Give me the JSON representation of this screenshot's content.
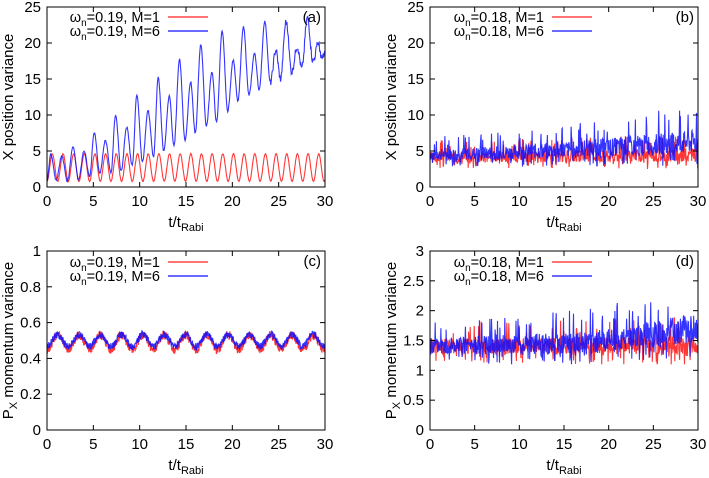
{
  "colors": {
    "m1": "#ff2020",
    "m6": "#1010ff"
  },
  "chart_data": [
    {
      "id": "a",
      "type": "line",
      "panel_label": "(a)",
      "ylabel": "X position variance",
      "xlabel": {
        "main": "t/t",
        "sub": "Rabi"
      },
      "xlim": [
        0,
        30
      ],
      "ylim": [
        0,
        25
      ],
      "xticks": [
        0,
        5,
        10,
        15,
        20,
        25,
        30
      ],
      "yticks": [
        0,
        5,
        10,
        15,
        20,
        25
      ],
      "series": [
        {
          "name": "M1",
          "legend": {
            "pre": "ω",
            "sub": "n",
            "post": "=0.19, M=1"
          },
          "color_key": "m1",
          "model": {
            "kind": "periodic",
            "mean": 2.7,
            "amp": 1.9,
            "period": 1.15,
            "noise": 0.05
          }
        },
        {
          "name": "M6",
          "legend": {
            "pre": "ω",
            "sub": "n",
            "post": "=0.19, M=6"
          },
          "color_key": "m6",
          "model": {
            "kind": "extrema",
            "noise": 0.25,
            "points": [
              [
                0,
                0.8
              ],
              [
                0.4,
                4.5
              ],
              [
                1,
                1
              ],
              [
                1.6,
                4.3
              ],
              [
                2.2,
                0.8
              ],
              [
                2.8,
                5.6
              ],
              [
                3.4,
                1
              ],
              [
                4,
                5
              ],
              [
                4.6,
                1.5
              ],
              [
                5.1,
                7.5
              ],
              [
                5.7,
                2
              ],
              [
                6.3,
                6.5
              ],
              [
                6.9,
                2
              ],
              [
                7.4,
                9.9
              ],
              [
                8,
                2.2
              ],
              [
                8.6,
                8.3
              ],
              [
                9.2,
                3
              ],
              [
                9.7,
                12.8
              ],
              [
                10.3,
                3.5
              ],
              [
                10.9,
                10.6
              ],
              [
                11.5,
                4.2
              ],
              [
                12,
                15.2
              ],
              [
                12.6,
                5
              ],
              [
                13.2,
                12.6
              ],
              [
                13.7,
                5.7
              ],
              [
                14.3,
                17.7
              ],
              [
                14.9,
                6.5
              ],
              [
                15.5,
                14.6
              ],
              [
                16,
                7.5
              ],
              [
                16.6,
                19.8
              ],
              [
                17.2,
                8.5
              ],
              [
                17.8,
                16
              ],
              [
                18.3,
                9
              ],
              [
                18.9,
                21.7
              ],
              [
                19.5,
                10.5
              ],
              [
                20.1,
                17.6
              ],
              [
                20.6,
                12
              ],
              [
                21.2,
                22.2
              ],
              [
                21.8,
                12.8
              ],
              [
                22.4,
                18.5
              ],
              [
                22.9,
                13.5
              ],
              [
                23.5,
                23
              ],
              [
                24.1,
                14.5
              ],
              [
                24.7,
                19
              ],
              [
                25.2,
                15
              ],
              [
                25.8,
                23
              ],
              [
                26.4,
                16
              ],
              [
                27,
                19.5
              ],
              [
                27.5,
                16.5
              ],
              [
                28.1,
                23.5
              ],
              [
                28.7,
                17.5
              ],
              [
                29.3,
                20
              ],
              [
                29.6,
                17.8
              ],
              [
                30,
                18.5
              ]
            ]
          }
        }
      ]
    },
    {
      "id": "b",
      "type": "line",
      "panel_label": "(b)",
      "ylabel": "X position variance",
      "xlabel": {
        "main": "t/t",
        "sub": "Rabi"
      },
      "xlim": [
        0,
        30
      ],
      "ylim": [
        0,
        25
      ],
      "xticks": [
        0,
        5,
        10,
        15,
        20,
        25,
        30
      ],
      "yticks": [
        0,
        5,
        10,
        15,
        20,
        25
      ],
      "series": [
        {
          "name": "M1",
          "legend": {
            "pre": "ω",
            "sub": "n",
            "post": "=0.18, M=1"
          },
          "color_key": "m1",
          "model": {
            "kind": "band",
            "seed": 3,
            "band": [
              [
                0,
                2.6,
                6.5
              ],
              [
                15,
                2.6,
                6.8
              ],
              [
                30,
                2.4,
                7.5
              ]
            ]
          }
        },
        {
          "name": "M6",
          "legend": {
            "pre": "ω",
            "sub": "n",
            "post": "=0.18, M=6"
          },
          "color_key": "m6",
          "model": {
            "kind": "band",
            "seed": 7,
            "band": [
              [
                0,
                2.8,
                7
              ],
              [
                10,
                2.8,
                8
              ],
              [
                20,
                2.9,
                9.5
              ],
              [
                30,
                2.9,
                11.5
              ]
            ]
          }
        }
      ]
    },
    {
      "id": "c",
      "type": "line",
      "panel_label": "(c)",
      "ylabel": {
        "main": "P",
        "sub": "X",
        "post": " momentum variance"
      },
      "xlabel": {
        "main": "t/t",
        "sub": "Rabi"
      },
      "xlim": [
        0,
        30
      ],
      "ylim": [
        0,
        1
      ],
      "xticks": [
        0,
        5,
        10,
        15,
        20,
        25,
        30
      ],
      "yticks": [
        0,
        0.2,
        0.4,
        0.6,
        0.8,
        1
      ],
      "series": [
        {
          "name": "M1",
          "legend": {
            "pre": "ω",
            "sub": "n",
            "post": "=0.19, M=1"
          },
          "color_key": "m1",
          "model": {
            "kind": "periodic",
            "mean": 0.49,
            "amp": 0.04,
            "period": 2.3,
            "noise": 0.025
          }
        },
        {
          "name": "M6",
          "legend": {
            "pre": "ω",
            "sub": "n",
            "post": "=0.19, M=6"
          },
          "color_key": "m6",
          "model": {
            "kind": "periodic",
            "mean": 0.5,
            "amp": 0.033,
            "period": 2.3,
            "noise": 0.02
          }
        }
      ]
    },
    {
      "id": "d",
      "type": "line",
      "panel_label": "(d)",
      "ylabel": {
        "main": "P",
        "sub": "X",
        "post": " momentum variance"
      },
      "xlabel": {
        "main": "t/t",
        "sub": "Rabi"
      },
      "xlim": [
        0,
        30
      ],
      "ylim": [
        0,
        3
      ],
      "xticks": [
        0,
        5,
        10,
        15,
        20,
        25,
        30
      ],
      "yticks": [
        0,
        0.5,
        1,
        1.5,
        2,
        2.5,
        3
      ],
      "series": [
        {
          "name": "M1",
          "legend": {
            "pre": "ω",
            "sub": "n",
            "post": "=0.18, M=1"
          },
          "color_key": "m1",
          "model": {
            "kind": "band",
            "seed": 11,
            "band": [
              [
                0,
                1.15,
                1.8
              ],
              [
                15,
                1.1,
                1.85
              ],
              [
                30,
                1.1,
                1.9
              ]
            ]
          }
        },
        {
          "name": "M6",
          "legend": {
            "pre": "ω",
            "sub": "n",
            "post": "=0.18, M=6"
          },
          "color_key": "m6",
          "model": {
            "kind": "band",
            "seed": 5,
            "band": [
              [
                0,
                1.1,
                1.85
              ],
              [
                15,
                1.1,
                2.0
              ],
              [
                20,
                1.1,
                2.1
              ],
              [
                30,
                1.2,
                2.5
              ]
            ]
          }
        }
      ]
    }
  ]
}
